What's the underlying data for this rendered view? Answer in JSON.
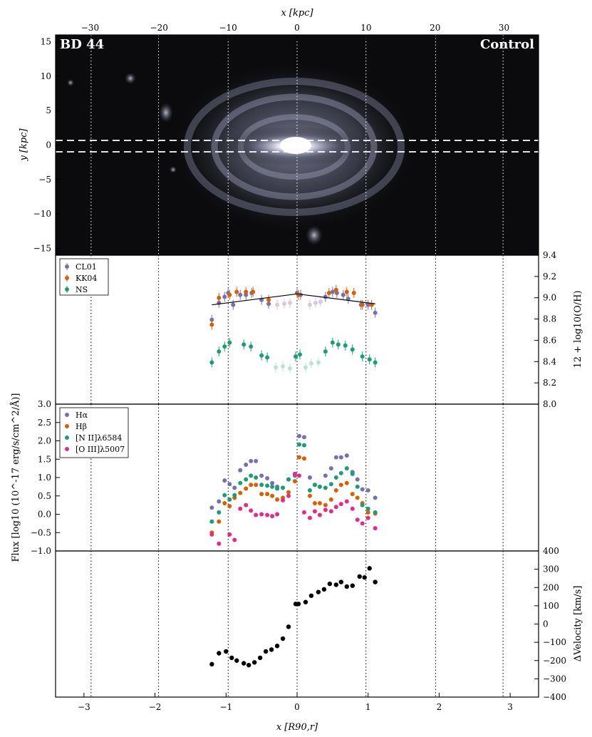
{
  "chart_data": [
    {
      "type": "image",
      "panel": "galaxy-image",
      "top_axis": {
        "label": "x [kpc]",
        "ticks": [
          -30,
          -20,
          -10,
          0,
          10,
          20,
          30
        ],
        "range": [
          -35,
          35
        ]
      },
      "y_axis": {
        "label": "y [kpc]",
        "ticks": [
          -15,
          -10,
          -5,
          0,
          5,
          10,
          15
        ],
        "range": [
          -16,
          16
        ]
      },
      "label_left": "BD 44",
      "label_right": "Control",
      "slit": {
        "y_top": 0.8,
        "y_bottom": -0.8
      },
      "colors": {
        "background": "#0b0b0e",
        "slit": "#ffffff"
      }
    },
    {
      "type": "scatter",
      "panel": "metallicity",
      "ylabel": "12 + log10(O/H)",
      "ylim": [
        8.0,
        9.5
      ],
      "y_ticks": [
        "8.0",
        "8.2",
        "8.4",
        "8.6",
        "8.8",
        "9.0",
        "9.2",
        "9.4"
      ],
      "legend": "top-left",
      "series": [
        {
          "name": "CL01",
          "color": "#7570b3",
          "x": [
            -1.2,
            -1.1,
            -1.02,
            -0.97,
            -0.9,
            -0.8,
            -0.72,
            -0.64,
            -0.5,
            -0.4,
            0.0,
            0.05,
            0.4,
            0.5,
            0.56,
            0.65,
            0.72,
            0.9,
            1.0,
            1.1
          ],
          "y": [
            8.85,
            9.02,
            9.08,
            9.12,
            9.0,
            9.1,
            9.1,
            9.12,
            9.05,
            9.01,
            9.12,
            9.1,
            9.08,
            9.13,
            9.12,
            9.1,
            9.06,
            9.0,
            9.0,
            8.92
          ]
        },
        {
          "name": "KK04",
          "color": "#d95f02",
          "x": [
            -1.2,
            -1.1,
            -0.95,
            -0.85,
            -0.72,
            -0.62,
            -0.4,
            0.02,
            0.45,
            0.55,
            0.7,
            0.8,
            0.92,
            1.05
          ],
          "y": [
            8.8,
            9.07,
            9.1,
            9.13,
            9.13,
            9.13,
            9.05,
            9.1,
            9.12,
            9.15,
            9.13,
            9.12,
            9.0,
            9.0
          ]
        },
        {
          "name": "NS",
          "color": "#1b9e77",
          "x": [
            -1.2,
            -1.1,
            -1.02,
            -0.95,
            -0.75,
            -0.65,
            -0.5,
            -0.42,
            -0.02,
            0.04,
            0.4,
            0.5,
            0.58,
            0.68,
            0.78,
            0.92,
            1.02,
            1.1
          ],
          "y": [
            8.42,
            8.53,
            8.58,
            8.62,
            8.6,
            8.58,
            8.49,
            8.47,
            8.48,
            8.5,
            8.53,
            8.62,
            8.6,
            8.59,
            8.55,
            8.48,
            8.45,
            8.42
          ]
        },
        {
          "name": "CL01 faint",
          "color": "#d9c8df",
          "x": [
            -0.28,
            -0.18,
            -0.1,
            0.18,
            0.26,
            0.33
          ],
          "y": [
            9.0,
            9.01,
            9.02,
            9.0,
            9.02,
            9.03
          ]
        },
        {
          "name": "NS faint",
          "color": "#b9e3d3",
          "x": [
            -0.3,
            -0.2,
            -0.1,
            0.12,
            0.2,
            0.3
          ],
          "y": [
            8.37,
            8.38,
            8.36,
            8.37,
            8.41,
            8.42
          ]
        }
      ],
      "fit_line": {
        "x": [
          -1.2,
          0.0,
          1.1
        ],
        "y": [
          9.0,
          9.11,
          9.01
        ]
      }
    },
    {
      "type": "scatter",
      "panel": "flux",
      "ylabel": "Flux [log10 (10^-17 erg/s/cm^2/Å)]",
      "ylim": [
        -1.0,
        3.0
      ],
      "y_ticks": [
        "−1.0",
        "−0.5",
        "0.0",
        "0.5",
        "1.0",
        "1.5",
        "2.0",
        "2.5",
        "3.0"
      ],
      "legend": "top-left",
      "x": [
        -1.2,
        -1.1,
        -1.02,
        -0.95,
        -0.88,
        -0.8,
        -0.72,
        -0.65,
        -0.58,
        -0.5,
        -0.42,
        -0.35,
        -0.28,
        -0.2,
        -0.12,
        -0.03,
        0.03,
        0.1,
        0.18,
        0.25,
        0.32,
        0.4,
        0.48,
        0.55,
        0.62,
        0.7,
        0.78,
        0.85,
        0.92,
        1.0,
        1.1
      ],
      "series": [
        {
          "name": "Hα",
          "color": "#7570b3",
          "y": [
            0.18,
            0.35,
            0.92,
            0.82,
            0.72,
            1.2,
            1.35,
            1.45,
            1.45,
            1.05,
            0.98,
            0.85,
            0.75,
            0.72,
            0.95,
            1.05,
            2.13,
            2.1,
            1.0,
            0.8,
            0.75,
            1.05,
            1.25,
            1.55,
            1.55,
            1.6,
            1.15,
            0.95,
            0.68,
            0.65,
            0.45
          ]
        },
        {
          "name": "Hβ",
          "color": "#d95f02",
          "y": [
            -0.5,
            -0.2,
            0.3,
            0.22,
            0.45,
            0.58,
            0.7,
            0.8,
            0.8,
            0.55,
            0.55,
            0.5,
            0.4,
            0.45,
            0.6,
            0.9,
            1.55,
            1.52,
            0.5,
            0.3,
            0.3,
            0.25,
            0.4,
            0.65,
            0.8,
            0.85,
            0.55,
            0.45,
            0.3,
            0.05,
            0.02
          ]
        },
        {
          "name": "[N II]λ6584",
          "color": "#1b9e77",
          "y": [
            -0.2,
            0.05,
            0.52,
            0.4,
            0.52,
            0.85,
            0.95,
            1.05,
            1.0,
            0.8,
            0.78,
            0.75,
            0.7,
            0.72,
            0.95,
            1.1,
            1.9,
            1.88,
            0.65,
            0.8,
            0.75,
            0.72,
            0.82,
            1.0,
            1.12,
            1.25,
            1.1,
            0.75,
            0.25,
            0.15,
            0.05
          ]
        },
        {
          "name": "[O III]λ5007",
          "color": "#e7298a",
          "y": [
            -0.55,
            -0.8,
            null,
            -0.55,
            -0.7,
            0.15,
            0.25,
            0.1,
            -0.02,
            0.0,
            -0.02,
            -0.05,
            0.0,
            0.38,
            0.5,
            1.1,
            1.05,
            0.05,
            -0.1,
            0.08,
            -0.02,
            0.12,
            0.08,
            0.2,
            0.28,
            0.35,
            0.15,
            -0.15,
            -0.25,
            -0.1,
            -0.38
          ]
        }
      ]
    },
    {
      "type": "scatter",
      "panel": "velocity",
      "xlabel": "x [R90,r]",
      "ylabel": "ΔVelocity [km/s]",
      "xlim": [
        -3.4,
        3.4
      ],
      "x_ticks": [
        "−3",
        "−2",
        "−1",
        "0",
        "1",
        "2",
        "3"
      ],
      "ylim": [
        -400,
        400
      ],
      "y_ticks": [
        "−400",
        "−300",
        "−200",
        "−100",
        "0",
        "100",
        "200",
        "300",
        "400"
      ],
      "series": [
        {
          "name": "",
          "color": "#000000",
          "x": [
            -1.2,
            -1.1,
            -1.0,
            -0.92,
            -0.85,
            -0.75,
            -0.68,
            -0.6,
            -0.52,
            -0.44,
            -0.36,
            -0.28,
            -0.2,
            -0.12,
            -0.02,
            0.02,
            0.12,
            0.2,
            0.3,
            0.38,
            0.46,
            0.55,
            0.62,
            0.7,
            0.78,
            0.88,
            0.95,
            1.02,
            1.1
          ],
          "y": [
            -220,
            -160,
            -150,
            -185,
            -200,
            -215,
            -225,
            -210,
            -185,
            -150,
            -140,
            -120,
            -80,
            -15,
            110,
            110,
            120,
            155,
            175,
            190,
            220,
            215,
            230,
            205,
            210,
            260,
            255,
            305,
            230
          ]
        }
      ]
    }
  ],
  "shared": {
    "vlines_x": [
      -2.9,
      -1.95,
      -0.97,
      0.0,
      0.97,
      1.95,
      2.9
    ]
  },
  "legend_flux_labels": [
    "Hα",
    "Hβ",
    "[N II]λ6584",
    "[O III]λ5007"
  ],
  "legend_metal_labels": [
    "CL01",
    "KK04",
    "NS"
  ]
}
